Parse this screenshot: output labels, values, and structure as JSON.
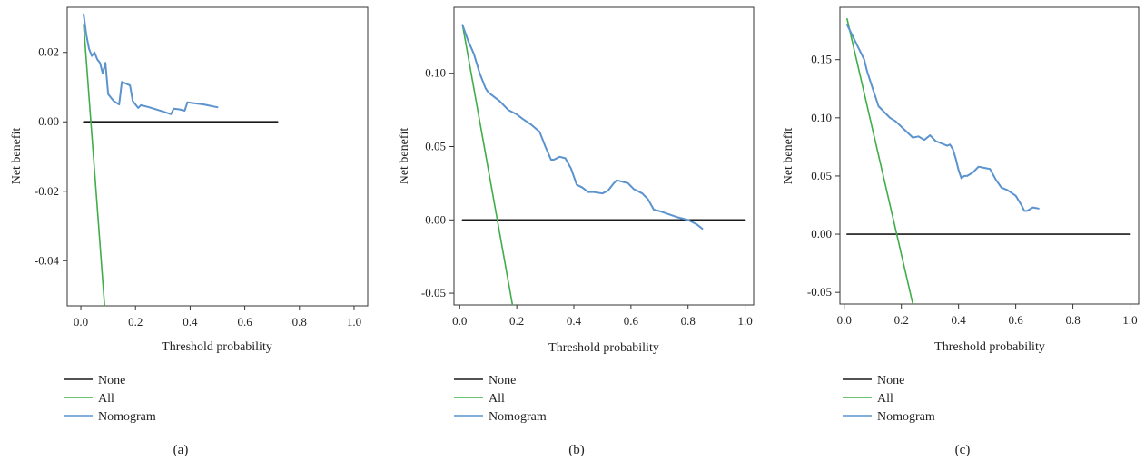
{
  "chart_data": [
    {
      "type": "line",
      "panel_label": "(a)",
      "xlabel": "Threshold probability",
      "ylabel": "Net benefit",
      "xlim": [
        -0.05,
        1.05
      ],
      "ylim": [
        -0.053,
        0.033
      ],
      "xticks": [
        0.0,
        0.2,
        0.4,
        0.6,
        0.8,
        1.0
      ],
      "xtick_labels": [
        "0.0",
        "0.2",
        "0.4",
        "0.6",
        "0.8",
        "1.0"
      ],
      "yticks": [
        -0.04,
        -0.02,
        0.0,
        0.02
      ],
      "ytick_labels": [
        "-0.04",
        "-0.02",
        "0.00",
        "0.02"
      ],
      "grid": false,
      "legend_position": "below",
      "series": [
        {
          "name": "None",
          "color": "#1a1a1a",
          "x": [
            0.01,
            0.72
          ],
          "y": [
            0.0,
            0.0
          ]
        },
        {
          "name": "All",
          "color": "#3fae49",
          "x": [
            0.01,
            0.087
          ],
          "y": [
            0.028,
            -0.053
          ]
        },
        {
          "name": "Nomogram",
          "color": "#5b93cf",
          "x": [
            0.01,
            0.02,
            0.03,
            0.04,
            0.05,
            0.06,
            0.07,
            0.08,
            0.09,
            0.1,
            0.11,
            0.12,
            0.14,
            0.15,
            0.18,
            0.19,
            0.2,
            0.21,
            0.22,
            0.25,
            0.3,
            0.33,
            0.34,
            0.36,
            0.38,
            0.39,
            0.45,
            0.5
          ],
          "y": [
            0.031,
            0.025,
            0.021,
            0.019,
            0.02,
            0.018,
            0.017,
            0.014,
            0.017,
            0.008,
            0.007,
            0.006,
            0.005,
            0.0115,
            0.0105,
            0.006,
            0.005,
            0.004,
            0.0048,
            0.0042,
            0.003,
            0.0022,
            0.0038,
            0.0036,
            0.0032,
            0.0056,
            0.005,
            0.0042
          ]
        }
      ]
    },
    {
      "type": "line",
      "panel_label": "(b)",
      "xlabel": "Threshold probability",
      "ylabel": "Net benefit",
      "xlim": [
        -0.02,
        1.03
      ],
      "ylim": [
        -0.058,
        0.145
      ],
      "xticks": [
        0.0,
        0.2,
        0.4,
        0.6,
        0.8,
        1.0
      ],
      "xtick_labels": [
        "0.0",
        "0.2",
        "0.4",
        "0.6",
        "0.8",
        "1.0"
      ],
      "yticks": [
        -0.05,
        0.0,
        0.05,
        0.1
      ],
      "ytick_labels": [
        "-0.05",
        "0.00",
        "0.05",
        "0.10"
      ],
      "grid": false,
      "legend_position": "below",
      "series": [
        {
          "name": "None",
          "color": "#1a1a1a",
          "x": [
            0.01,
            1.0
          ],
          "y": [
            0.0,
            0.0
          ]
        },
        {
          "name": "All",
          "color": "#3fae49",
          "x": [
            0.01,
            0.185
          ],
          "y": [
            0.133,
            -0.058
          ]
        },
        {
          "name": "Nomogram",
          "color": "#5b93cf",
          "x": [
            0.01,
            0.03,
            0.05,
            0.07,
            0.09,
            0.1,
            0.12,
            0.14,
            0.17,
            0.2,
            0.22,
            0.25,
            0.28,
            0.3,
            0.32,
            0.33,
            0.35,
            0.37,
            0.39,
            0.41,
            0.43,
            0.45,
            0.47,
            0.5,
            0.52,
            0.54,
            0.55,
            0.57,
            0.59,
            0.61,
            0.64,
            0.66,
            0.68,
            0.7,
            0.73,
            0.76,
            0.8,
            0.83,
            0.85
          ],
          "y": [
            0.133,
            0.122,
            0.113,
            0.1,
            0.09,
            0.087,
            0.084,
            0.081,
            0.075,
            0.072,
            0.069,
            0.065,
            0.06,
            0.05,
            0.041,
            0.041,
            0.043,
            0.042,
            0.035,
            0.024,
            0.022,
            0.019,
            0.019,
            0.018,
            0.02,
            0.025,
            0.027,
            0.026,
            0.025,
            0.021,
            0.018,
            0.014,
            0.007,
            0.006,
            0.004,
            0.002,
            0.0,
            -0.003,
            -0.006
          ]
        }
      ]
    },
    {
      "type": "line",
      "panel_label": "(c)",
      "xlabel": "Threshold probability",
      "ylabel": "Net benefit",
      "xlim": [
        -0.015,
        1.03
      ],
      "ylim": [
        -0.06,
        0.195
      ],
      "xticks": [
        0.0,
        0.2,
        0.4,
        0.6,
        0.8,
        1.0
      ],
      "xtick_labels": [
        "0.0",
        "0.2",
        "0.4",
        "0.6",
        "0.8",
        "1.0"
      ],
      "yticks": [
        -0.05,
        0.0,
        0.05,
        0.1,
        0.15
      ],
      "ytick_labels": [
        "-0.05",
        "0.00",
        "0.05",
        "0.10",
        "0.15"
      ],
      "grid": false,
      "legend_position": "below",
      "series": [
        {
          "name": "None",
          "color": "#1a1a1a",
          "x": [
            0.01,
            1.0
          ],
          "y": [
            0.0,
            0.0
          ]
        },
        {
          "name": "All",
          "color": "#3fae49",
          "x": [
            0.01,
            0.24
          ],
          "y": [
            0.185,
            -0.06
          ]
        },
        {
          "name": "Nomogram",
          "color": "#5b93cf",
          "x": [
            0.01,
            0.03,
            0.05,
            0.07,
            0.08,
            0.1,
            0.12,
            0.14,
            0.16,
            0.18,
            0.21,
            0.24,
            0.26,
            0.28,
            0.3,
            0.32,
            0.34,
            0.36,
            0.37,
            0.38,
            0.39,
            0.4,
            0.41,
            0.42,
            0.43,
            0.45,
            0.47,
            0.49,
            0.51,
            0.53,
            0.55,
            0.57,
            0.6,
            0.62,
            0.63,
            0.64,
            0.66,
            0.68
          ],
          "y": [
            0.18,
            0.17,
            0.16,
            0.15,
            0.14,
            0.125,
            0.11,
            0.105,
            0.1,
            0.097,
            0.09,
            0.083,
            0.084,
            0.081,
            0.085,
            0.08,
            0.078,
            0.076,
            0.077,
            0.073,
            0.065,
            0.055,
            0.048,
            0.05,
            0.05,
            0.053,
            0.058,
            0.057,
            0.056,
            0.047,
            0.04,
            0.038,
            0.033,
            0.025,
            0.02,
            0.02,
            0.023,
            0.022
          ]
        }
      ]
    }
  ]
}
